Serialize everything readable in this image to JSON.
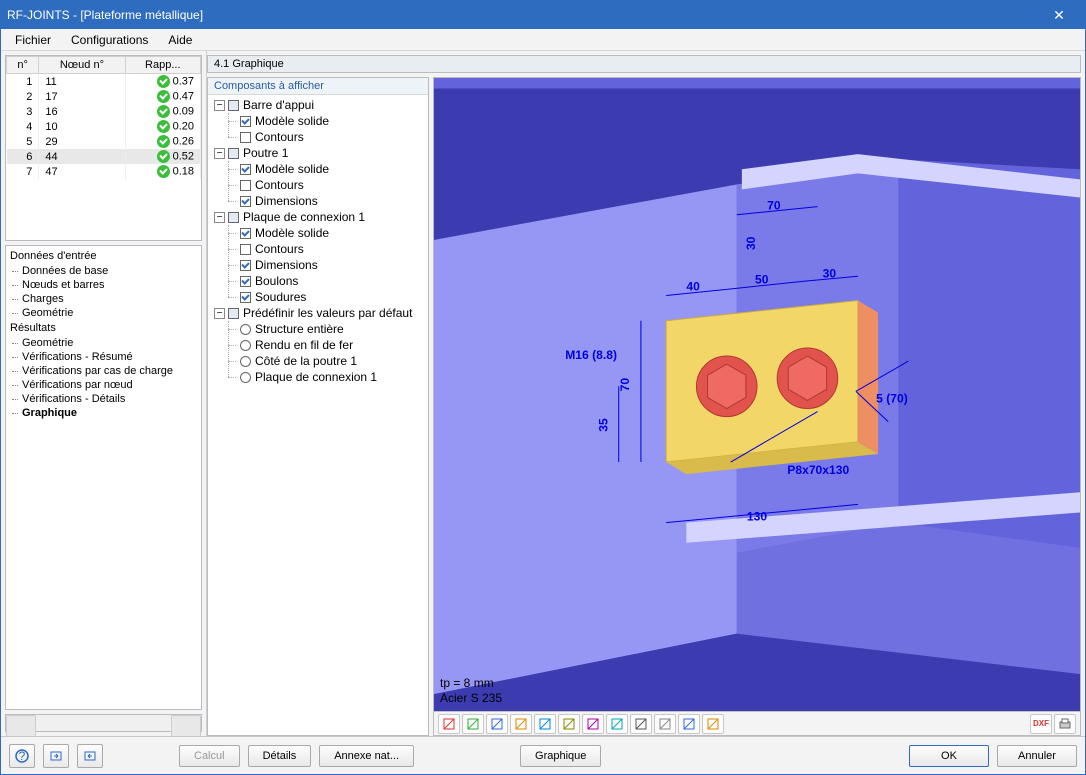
{
  "title": "RF-JOINTS - [Plateforme métallique]",
  "menu": {
    "file": "Fichier",
    "config": "Configurations",
    "help": "Aide"
  },
  "grid_headers": {
    "n": "n°",
    "node": "Nœud n°",
    "ratio": "Rapp..."
  },
  "grid_rows": [
    {
      "n": "1",
      "node": "11",
      "ratio": "0.37"
    },
    {
      "n": "2",
      "node": "17",
      "ratio": "0.47"
    },
    {
      "n": "3",
      "node": "16",
      "ratio": "0.09"
    },
    {
      "n": "4",
      "node": "10",
      "ratio": "0.20"
    },
    {
      "n": "5",
      "node": "29",
      "ratio": "0.26"
    },
    {
      "n": "6",
      "node": "44",
      "ratio": "0.52"
    },
    {
      "n": "7",
      "node": "47",
      "ratio": "0.18"
    }
  ],
  "grid_selected_index": 5,
  "nav": {
    "input_hdr": "Données d'entrée",
    "input_items": [
      "Données de base",
      "Nœuds et barres",
      "Charges",
      "Geométrie"
    ],
    "results_hdr": "Résultats",
    "results_items": [
      "Geométrie",
      "Vérifications - Résumé",
      "Vérifications par cas de charge",
      "Vérifications par nœud",
      "Vérifications - Détails",
      "Graphique"
    ],
    "results_selected": 5
  },
  "section_title": "4.1 Graphique",
  "tree": {
    "header": "Composants à afficher",
    "groups": [
      {
        "label": "Barre d'appui",
        "state": "tri",
        "children": [
          {
            "type": "check",
            "state": "chk",
            "label": "Modèle solide"
          },
          {
            "type": "check",
            "state": "",
            "label": "Contours"
          }
        ]
      },
      {
        "label": "Poutre 1",
        "state": "tri",
        "children": [
          {
            "type": "check",
            "state": "chk",
            "label": "Modèle solide"
          },
          {
            "type": "check",
            "state": "",
            "label": "Contours"
          },
          {
            "type": "check",
            "state": "chk",
            "label": "Dimensions"
          }
        ]
      },
      {
        "label": "Plaque de connexion 1",
        "state": "tri",
        "children": [
          {
            "type": "check",
            "state": "chk",
            "label": "Modèle solide"
          },
          {
            "type": "check",
            "state": "",
            "label": "Contours"
          },
          {
            "type": "check",
            "state": "chk",
            "label": "Dimensions"
          },
          {
            "type": "check",
            "state": "chk",
            "label": "Boulons"
          },
          {
            "type": "check",
            "state": "chk",
            "label": "Soudures"
          }
        ]
      },
      {
        "label": "Prédéfinir les valeurs par défaut",
        "state": "tri",
        "children": [
          {
            "type": "radio",
            "label": "Structure entière"
          },
          {
            "type": "radio",
            "label": "Rendu en fil de fer"
          },
          {
            "type": "radio",
            "label": "Côté de la poutre  1"
          },
          {
            "type": "radio",
            "label": "Plaque de connexion 1"
          }
        ]
      }
    ]
  },
  "viewport": {
    "bg_color": "#6363dc",
    "beam_light": "#9696f4",
    "beam_dark": "#3c3cb0",
    "plate_face": "#f2d768",
    "plate_edge": "#ed8f62",
    "bolt_color": "#e3534d",
    "dim_color": "#0000e0",
    "dims": {
      "d70_top": "70",
      "d30_gap": "30",
      "d40": "40",
      "d50": "50",
      "d30_r": "30",
      "d70_h": "70",
      "d35_h": "35",
      "d130": "130",
      "bolt_label": "M16 (8.8)",
      "weld_label": "5 (70)",
      "plate_label": "P8x70x130"
    },
    "annot_line1": "tp = 8 mm",
    "annot_line2": "Acier S 235",
    "toolbar_icons": [
      "view-x",
      "view-a",
      "view-xyz",
      "view-neg-x",
      "view-neg-y",
      "view-xy",
      "view-yz",
      "view-xz",
      "view-neg-z",
      "view-iso",
      "zoom-fit",
      "view-layers"
    ],
    "toolbar_right": [
      "export-dxf",
      "print"
    ]
  },
  "buttons": {
    "calcul": "Calcul",
    "details": "Détails",
    "annexe": "Annexe nat...",
    "graphique": "Graphique",
    "ok": "OK",
    "annuler": "Annuler"
  }
}
